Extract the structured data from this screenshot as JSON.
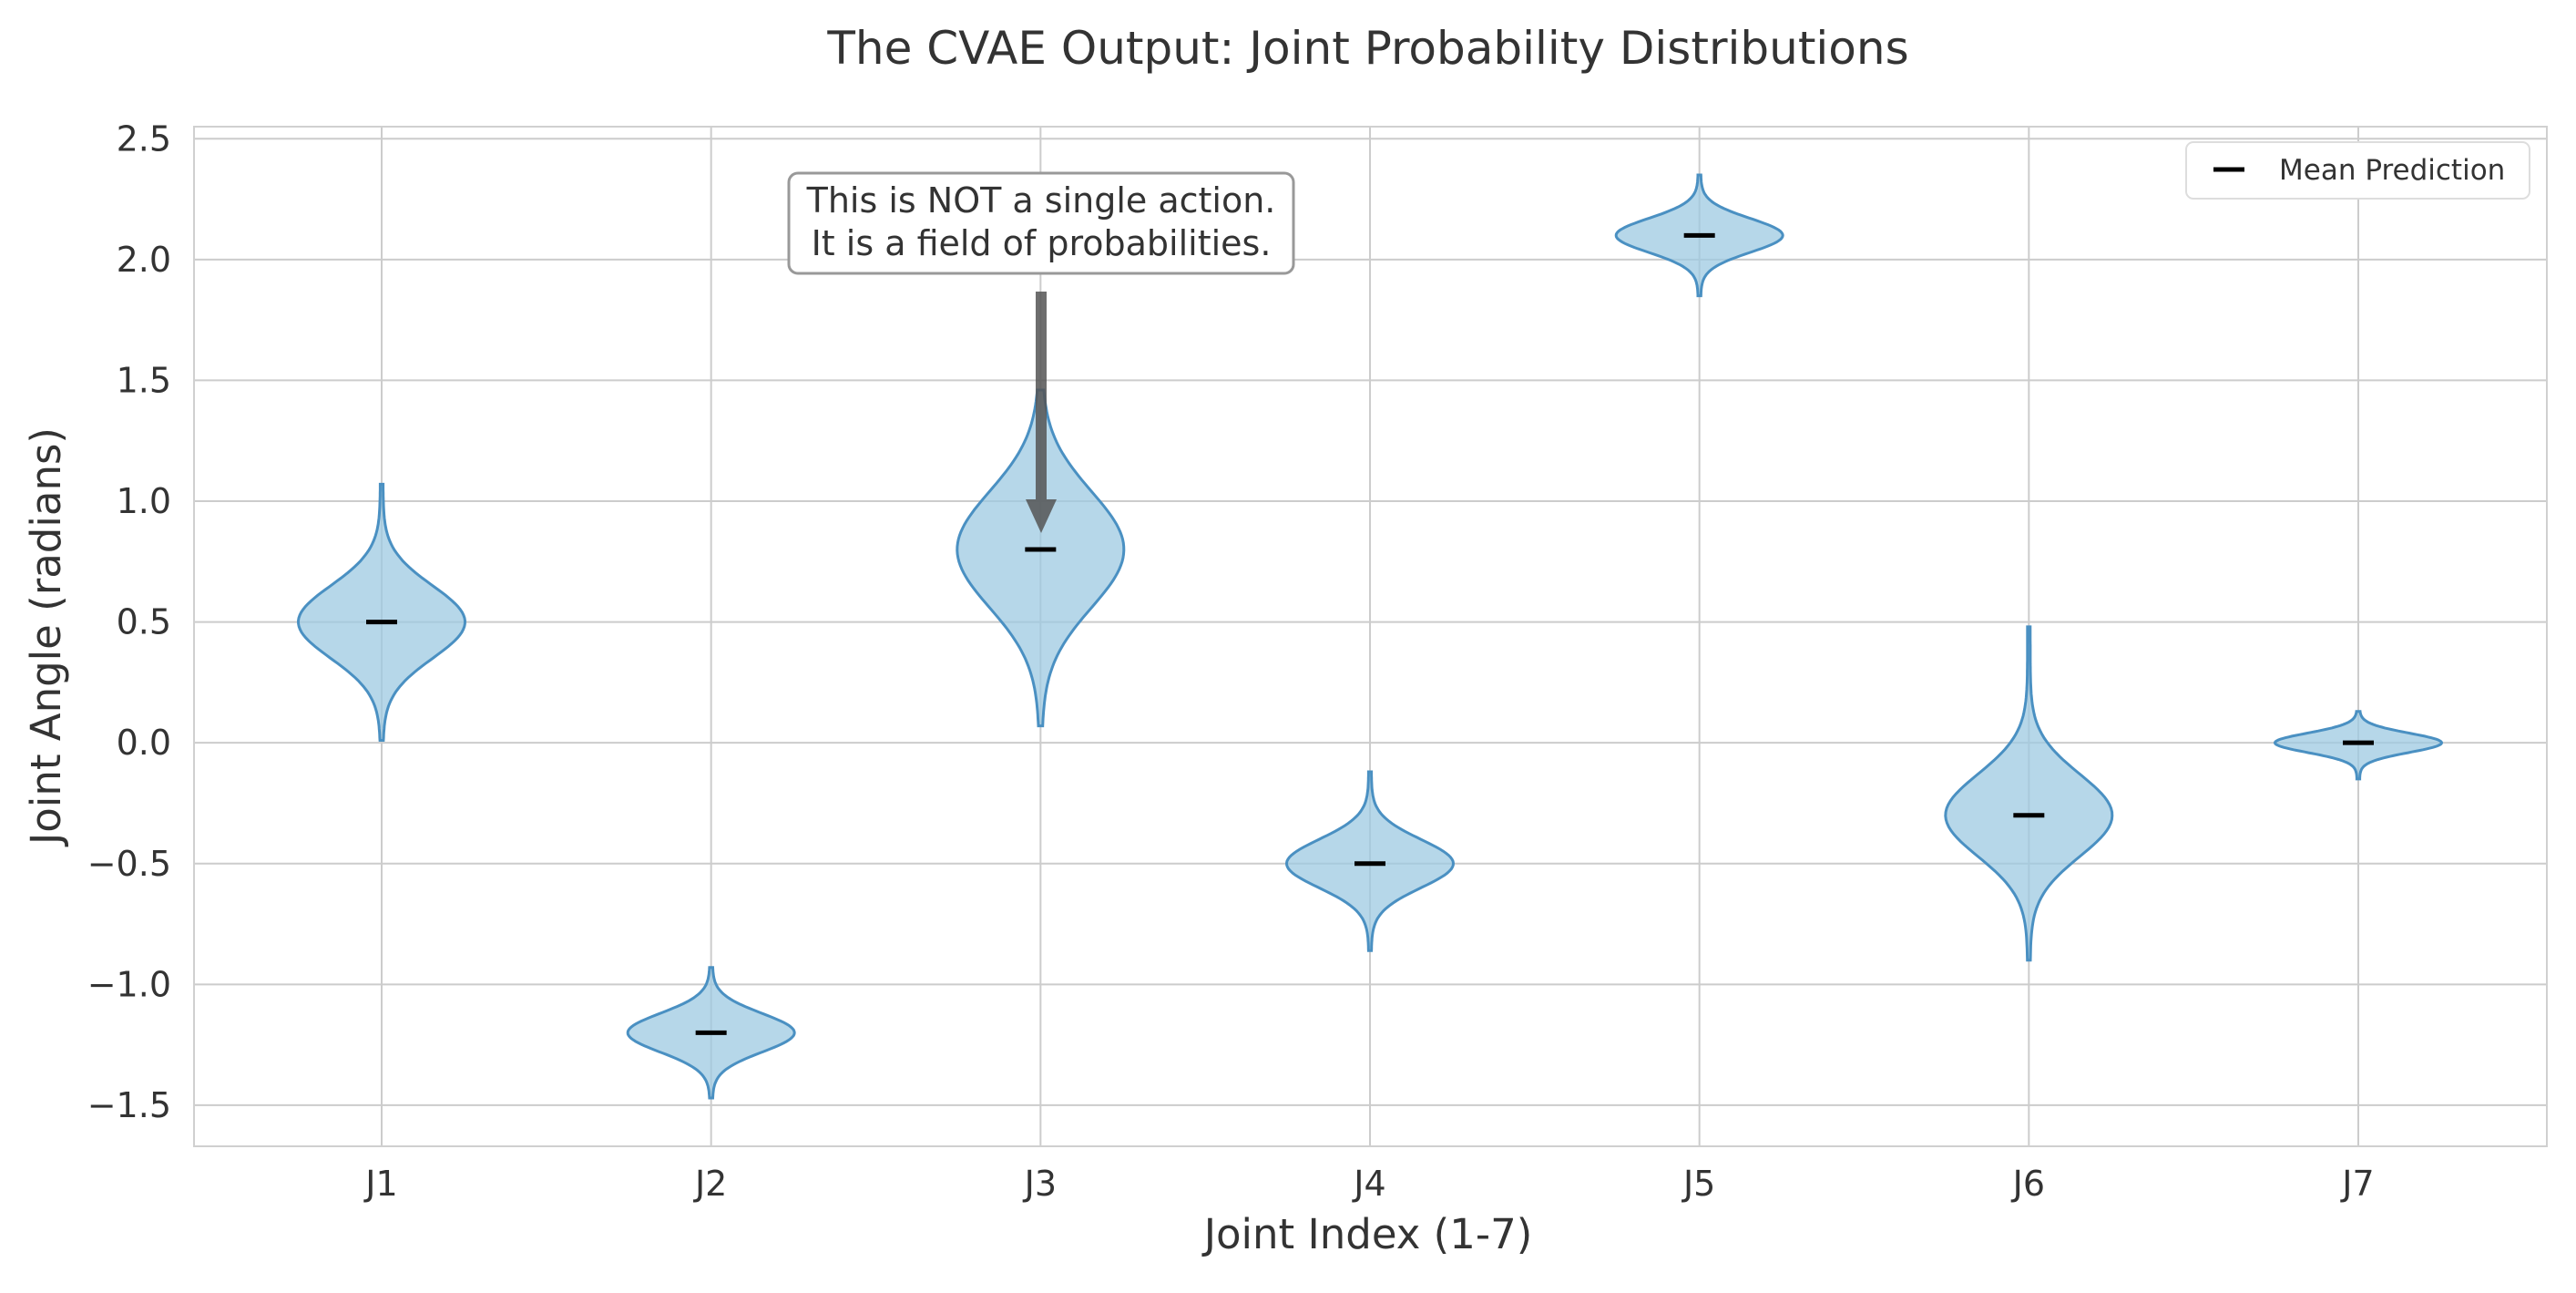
{
  "chart_data": {
    "type": "violin",
    "title": "The CVAE Output: Joint Probability Distributions",
    "xlabel": "Joint Index (1-7)",
    "ylabel": "Joint Angle (radians)",
    "categories": [
      "J1",
      "J2",
      "J3",
      "J4",
      "J5",
      "J6",
      "J7"
    ],
    "means": [
      0.5,
      -1.2,
      0.8,
      -0.5,
      2.1,
      -0.3,
      0.0
    ],
    "std_devs": [
      0.15,
      0.08,
      0.24,
      0.1,
      0.07,
      0.17,
      0.04
    ],
    "ranges": [
      [
        0.01,
        1.07
      ],
      [
        -1.47,
        -0.93
      ],
      [
        0.07,
        1.46
      ],
      [
        -0.86,
        -0.12
      ],
      [
        1.85,
        2.35
      ],
      [
        -0.9,
        0.48
      ],
      [
        -0.15,
        0.13
      ]
    ],
    "ylim": [
      -1.67,
      2.55
    ],
    "yticks": [
      -1.5,
      -1.0,
      -0.5,
      0.0,
      0.5,
      1.0,
      1.5,
      2.0,
      2.5
    ],
    "ytick_labels": [
      "−1.5",
      "−1.0",
      "−0.5",
      "0.0",
      "0.5",
      "1.0",
      "1.5",
      "2.0",
      "2.5"
    ],
    "grid": true,
    "legend": {
      "placement": "top-right",
      "entries": [
        "Mean Prediction"
      ]
    },
    "annotation": {
      "lines": [
        "This is NOT a single action.",
        "It is a field of probabilities."
      ],
      "target_category": "J3",
      "target_value": 0.85,
      "text_anchor_value": 2.12
    },
    "colors": {
      "violin_fill": "#9ecae1",
      "violin_edge": "#4a90c2",
      "mean_marker": "#000000",
      "grid": "#cccccc",
      "arrow": "#555555"
    }
  }
}
